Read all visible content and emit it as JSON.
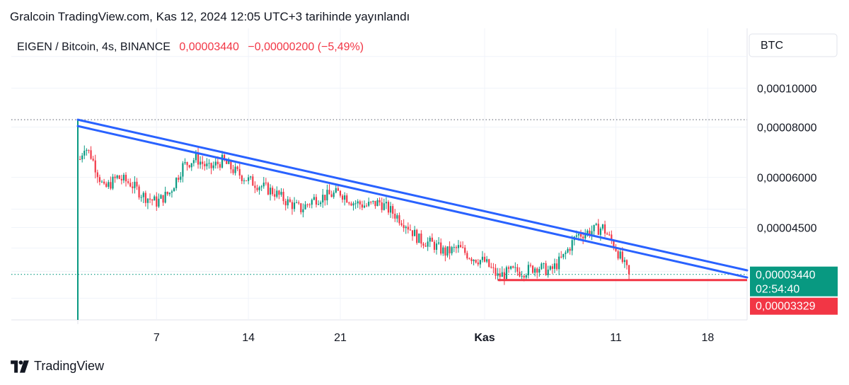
{
  "header": {
    "published_line": "Gralcoin TradingView.com, Kas 12, 2024 12:05 UTC+3 tarihinde yayınlandı"
  },
  "footer": {
    "brand": "TradingView",
    "logo_icon": "tradingview-logo-icon"
  },
  "colors": {
    "up": "#089981",
    "down": "#f23645",
    "trendline": "#2962ff",
    "support": "#f23645",
    "grid": "#f0f3fa",
    "axis_text": "#131722",
    "current_label": "#089981",
    "support_label": "#f23645"
  },
  "chart_data": {
    "type": "candlestick",
    "symbol_line": {
      "pair": "EIGEN / Bitcoin, 4s, BINANCE",
      "last": "0,00003440",
      "change": "−0,00000200 (−5,49%)"
    },
    "currency": "BTC",
    "scale": "log",
    "x_axis": {
      "labels": [
        {
          "date": "2024-10-07",
          "text": "7"
        },
        {
          "date": "2024-10-14",
          "text": "14"
        },
        {
          "date": "2024-10-21",
          "text": "21"
        },
        {
          "date": "2024-11-01",
          "text": "Kas"
        },
        {
          "date": "2024-11-11",
          "text": "11"
        },
        {
          "date": "2024-11-18",
          "text": "18"
        }
      ],
      "range": [
        "2024-10-01",
        "2024-11-21"
      ]
    },
    "y_axis": {
      "ticks": [
        {
          "value": 0.0001,
          "text": "0,00010000"
        },
        {
          "value": 8e-05,
          "text": "0,00008000"
        },
        {
          "value": 6e-05,
          "text": "0,00006000"
        },
        {
          "value": 4.5e-05,
          "text": "0,00004500"
        }
      ],
      "range": [
        2.65e-05,
        0.00013
      ]
    },
    "price_labels": {
      "current": {
        "value": 3.44e-05,
        "text": "0,00003440",
        "countdown": "02:54:40"
      },
      "support": {
        "value": 3.329e-05,
        "text": "0,00003329"
      }
    },
    "horizontal_dotted": [
      {
        "value": 8.35e-05,
        "color": "#787b86"
      },
      {
        "value": 3.44e-05,
        "color": "#089981"
      }
    ],
    "trendlines": [
      {
        "from": {
          "date": "2024-10-01",
          "value": 8.35e-05
        },
        "to": {
          "date": "2024-11-21",
          "value": 3.52e-05
        }
      },
      {
        "from": {
          "date": "2024-10-01",
          "value": 8.05e-05
        },
        "to": {
          "date": "2024-11-21",
          "value": 3.38e-05
        }
      }
    ],
    "support_line": {
      "from": "2024-11-02",
      "to": "2024-11-21",
      "value": 3.33e-05
    },
    "listing_wick": {
      "date": "2024-10-01",
      "high": 8.35e-05,
      "low": 2.65e-05
    },
    "close_path": [
      [
        "2024-10-01",
        6.4e-05
      ],
      [
        "2024-10-01T12",
        7.2e-05
      ],
      [
        "2024-10-02",
        6.8e-05
      ],
      [
        "2024-10-03",
        5.6e-05
      ],
      [
        "2024-10-04",
        6e-05
      ],
      [
        "2024-10-05",
        5.8e-05
      ],
      [
        "2024-10-06",
        5.4e-05
      ],
      [
        "2024-10-07",
        5.2e-05
      ],
      [
        "2024-10-08",
        5.5e-05
      ],
      [
        "2024-10-09",
        6.4e-05
      ],
      [
        "2024-10-10",
        6.7e-05
      ],
      [
        "2024-10-11",
        6.3e-05
      ],
      [
        "2024-10-12",
        6.6e-05
      ],
      [
        "2024-10-13",
        6.2e-05
      ],
      [
        "2024-10-14",
        5.9e-05
      ],
      [
        "2024-10-15",
        5.7e-05
      ],
      [
        "2024-10-16",
        5.5e-05
      ],
      [
        "2024-10-17",
        5.2e-05
      ],
      [
        "2024-10-18",
        5e-05
      ],
      [
        "2024-10-19",
        5.3e-05
      ],
      [
        "2024-10-20",
        5.4e-05
      ],
      [
        "2024-10-21",
        5.5e-05
      ],
      [
        "2024-10-22",
        5.2e-05
      ],
      [
        "2024-10-23",
        5.1e-05
      ],
      [
        "2024-10-24",
        5.2e-05
      ],
      [
        "2024-10-25",
        4.9e-05
      ],
      [
        "2024-10-26",
        4.6e-05
      ],
      [
        "2024-10-27",
        4.2e-05
      ],
      [
        "2024-10-28",
        4.1e-05
      ],
      [
        "2024-10-29",
        3.9e-05
      ],
      [
        "2024-10-30",
        4e-05
      ],
      [
        "2024-10-31",
        3.8e-05
      ],
      [
        "2024-11-01",
        3.7e-05
      ],
      [
        "2024-11-02",
        3.4e-05
      ],
      [
        "2024-11-03",
        3.5e-05
      ],
      [
        "2024-11-04",
        3.5e-05
      ],
      [
        "2024-11-05",
        3.6e-05
      ],
      [
        "2024-11-06",
        3.5e-05
      ],
      [
        "2024-11-07",
        3.8e-05
      ],
      [
        "2024-11-08",
        4.3e-05
      ],
      [
        "2024-11-09",
        4.4e-05
      ],
      [
        "2024-11-10",
        4.5e-05
      ],
      [
        "2024-11-11",
        4e-05
      ],
      [
        "2024-11-11T12",
        3.7e-05
      ],
      [
        "2024-11-12",
        3.44e-05
      ]
    ],
    "grid": true
  }
}
